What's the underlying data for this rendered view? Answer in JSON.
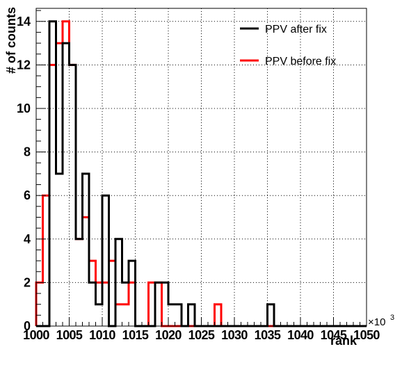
{
  "chart_data": {
    "type": "histogram",
    "xlabel": "rank",
    "ylabel": "# of counts",
    "x_multiplier_label": "×10",
    "x_multiplier_exponent": "3",
    "xlim": [
      1000,
      1050
    ],
    "ylim": [
      0,
      14.6
    ],
    "x_ticks": [
      1000,
      1005,
      1010,
      1015,
      1020,
      1025,
      1030,
      1035,
      1040,
      1045,
      1050
    ],
    "y_ticks": [
      0,
      2,
      4,
      6,
      8,
      10,
      12,
      14
    ],
    "grid": true,
    "legend_position": "top-right",
    "bin_edges": [
      1000,
      1001,
      1002,
      1003,
      1004,
      1005,
      1006,
      1007,
      1008,
      1009,
      1010,
      1011,
      1012,
      1013,
      1014,
      1015,
      1016,
      1017,
      1018,
      1019,
      1020,
      1021,
      1022,
      1023,
      1024,
      1025,
      1026,
      1027,
      1028,
      1029,
      1030,
      1031,
      1032,
      1033,
      1034,
      1035,
      1036,
      1037,
      1038,
      1039,
      1040,
      1041,
      1042,
      1043,
      1044,
      1045,
      1046,
      1047,
      1048,
      1049,
      1050
    ],
    "series": [
      {
        "name": "PPV after fix",
        "color": "#000000",
        "values": [
          0,
          0,
          14,
          7,
          13,
          12,
          4,
          7,
          2,
          1,
          6,
          0,
          4,
          2,
          3,
          0,
          0,
          0,
          2,
          2,
          1,
          1,
          0,
          1,
          0,
          0,
          0,
          0,
          0,
          0,
          0,
          0,
          0,
          0,
          0,
          1,
          0,
          0,
          0,
          0,
          0,
          0,
          0,
          0,
          0,
          0,
          0,
          0,
          0,
          0
        ]
      },
      {
        "name": "PPV before fix",
        "color": "#ff0000",
        "values": [
          2,
          6,
          12,
          13,
          14,
          12,
          4,
          5,
          3,
          2,
          2,
          3,
          1,
          1,
          2,
          0,
          0,
          2,
          2,
          0,
          0,
          0,
          0,
          0,
          0,
          0,
          0,
          1,
          0,
          0,
          0,
          0,
          0,
          0,
          0,
          0,
          0,
          0,
          0,
          0,
          0,
          0,
          0,
          0,
          0,
          0,
          0,
          0,
          0,
          0
        ]
      }
    ]
  }
}
